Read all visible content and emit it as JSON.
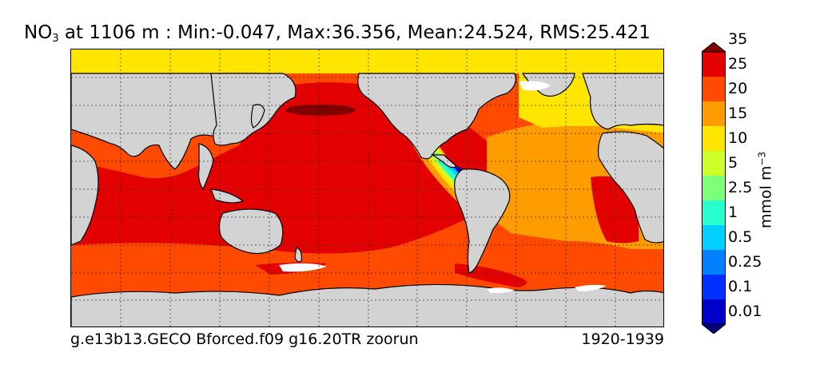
{
  "title": {
    "variable": "NO",
    "variable_sub": "3",
    "rest": " at 1106 m : Min:-0.047, Max:36.356, Mean:24.524, RMS:25.421"
  },
  "footer": {
    "run_name": "g.e13b13.GECO Bforced.f09 g16.20TR zoorun",
    "period": "1920-1939"
  },
  "colorbar": {
    "units_main": "mmol m",
    "units_sup": "−3",
    "labels": [
      "0.01",
      "0.1",
      "0.25",
      "0.5",
      "1",
      "2.5",
      "5",
      "10",
      "15",
      "20",
      "25",
      "35"
    ],
    "colors": [
      "#00007f",
      "#0000c8",
      "#0030ff",
      "#0080ff",
      "#00d0ff",
      "#29ffce",
      "#7dff7a",
      "#ceff29",
      "#ffe500",
      "#ff9c00",
      "#ff4a00",
      "#e30000",
      "#800000"
    ],
    "extend": "both"
  },
  "map_colors": {
    "land": "#d3d3d3",
    "no_data": "#ffffff",
    "southern": "#ff4a00",
    "pacific": "#e30000",
    "atlantic": "#ff9c00",
    "arctic": "#ffe500",
    "max": "#800000"
  }
}
